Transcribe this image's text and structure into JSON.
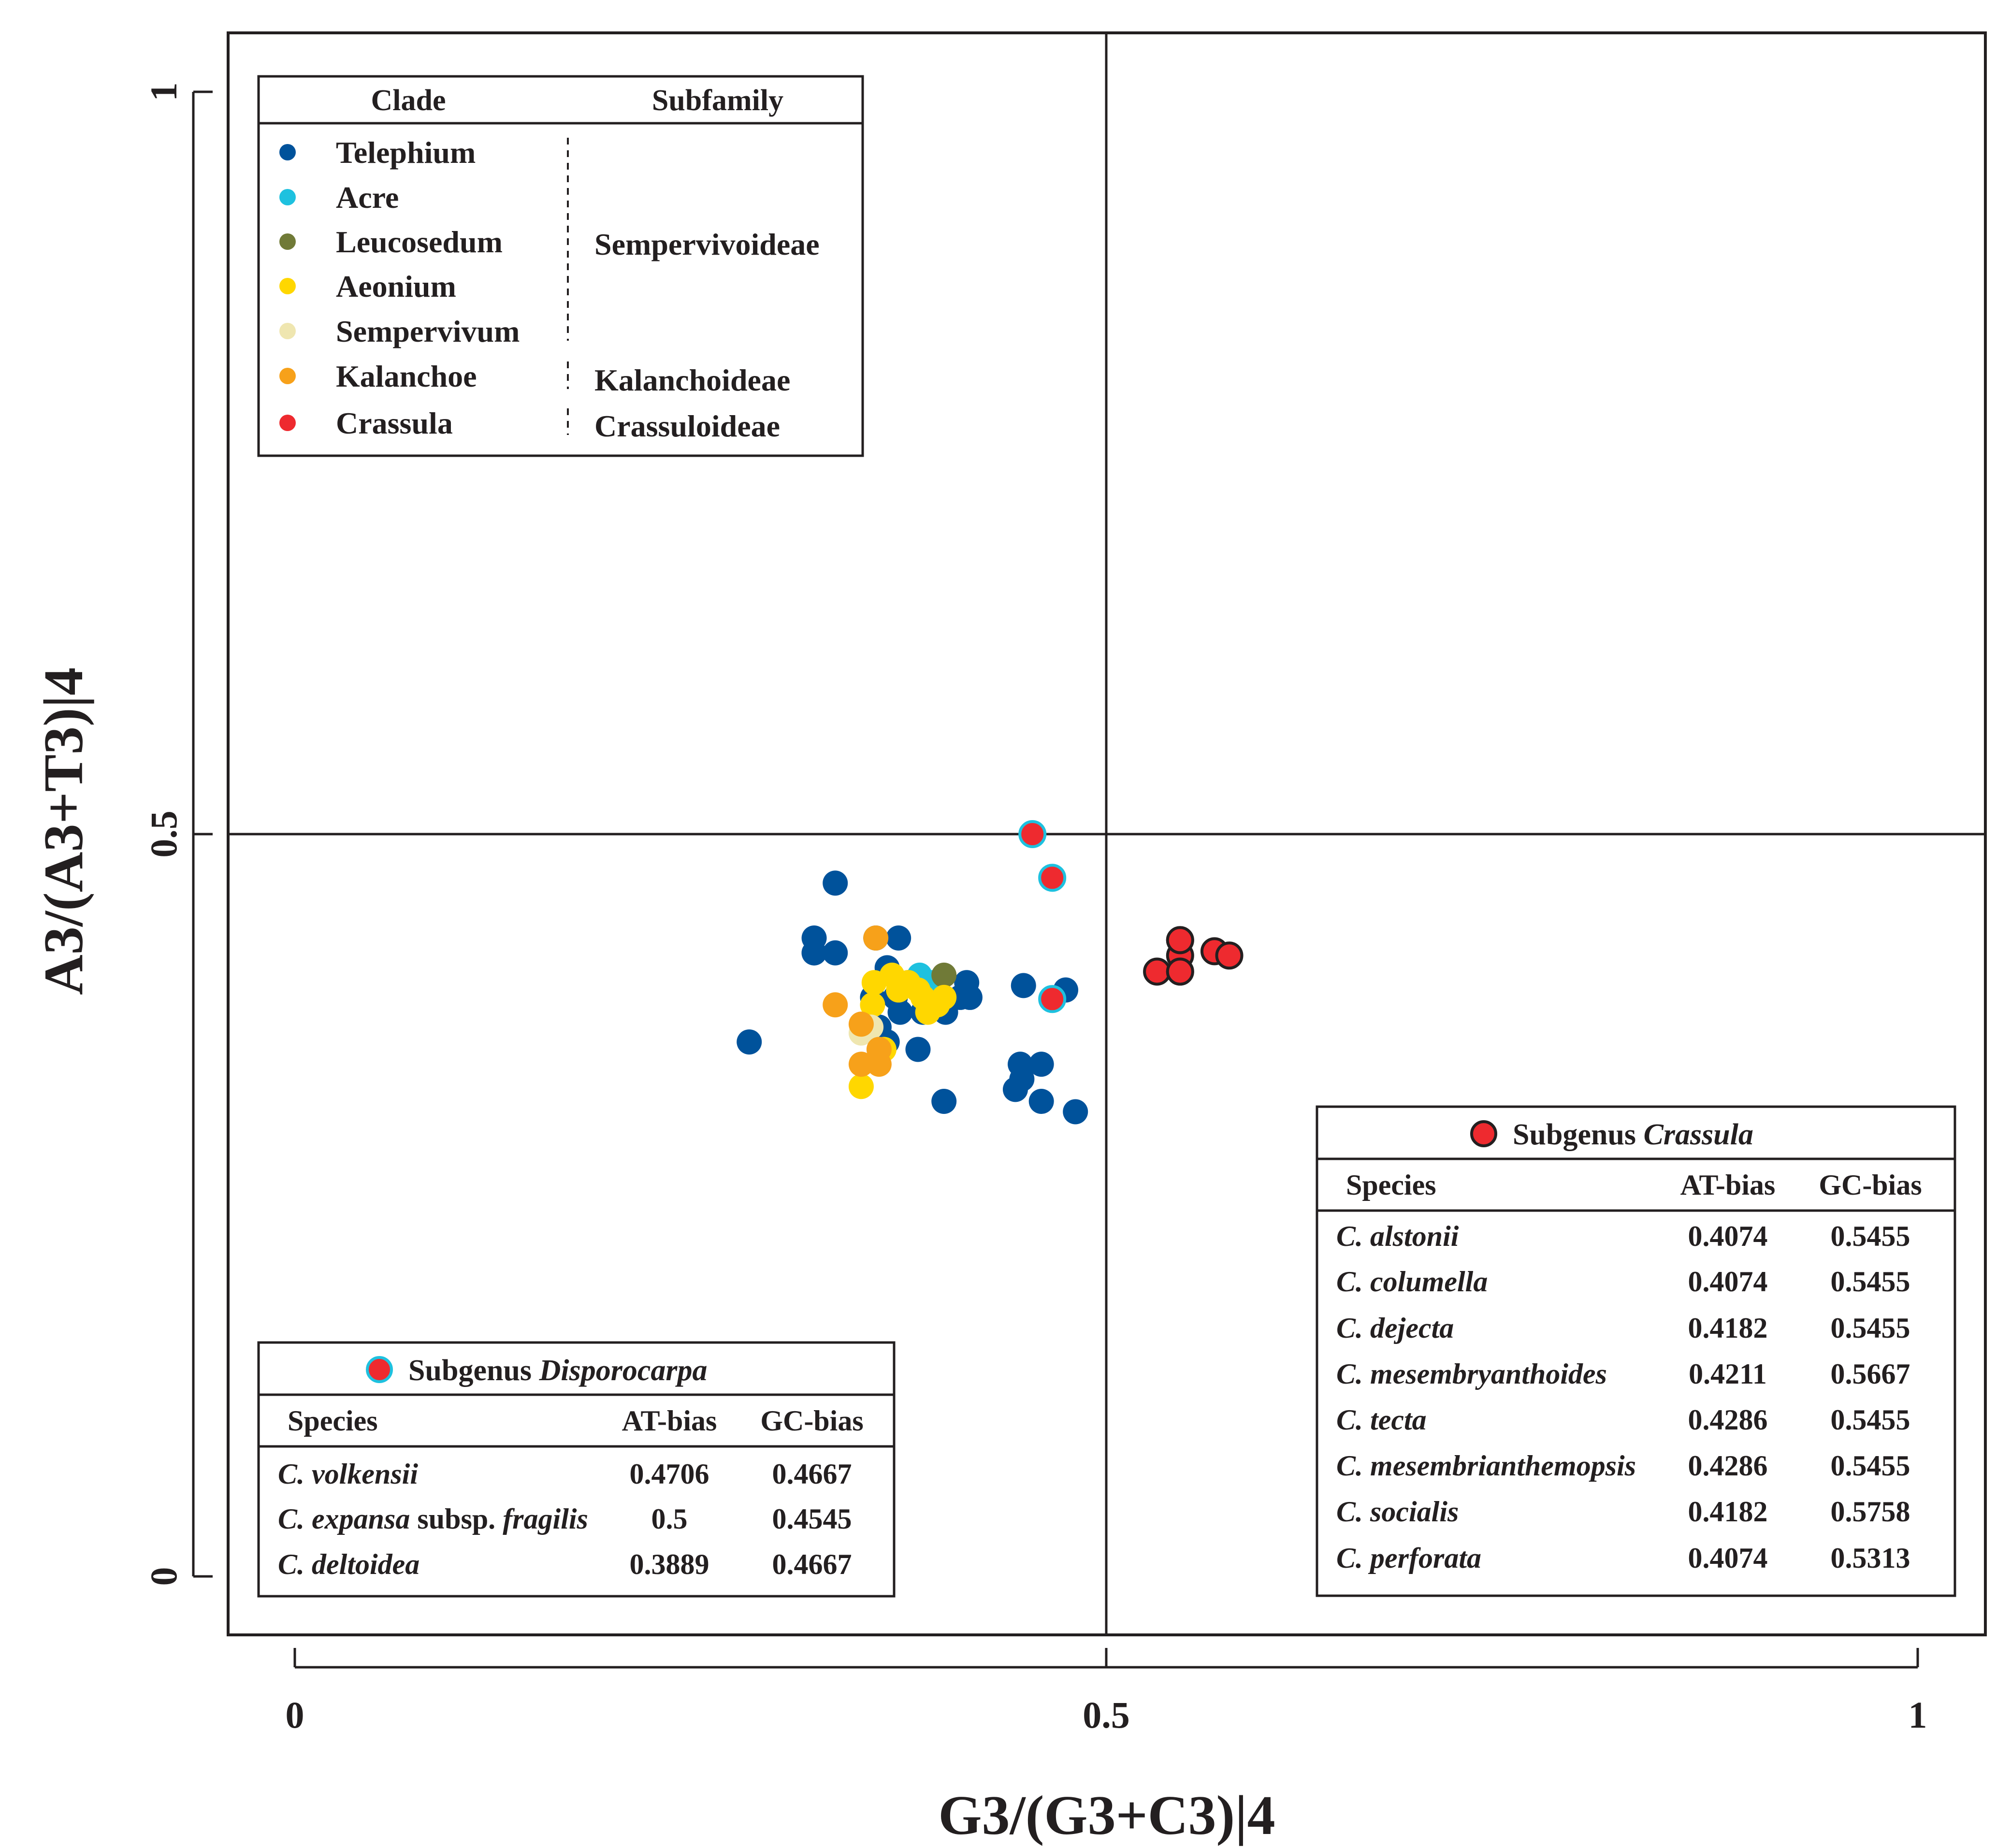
{
  "chart_data": {
    "type": "scatter",
    "xlabel": "G3/(G3+C3)|4",
    "ylabel": "A3/(A3+T3)|4",
    "xlim": [
      0,
      1
    ],
    "ylim": [
      0,
      1
    ],
    "xticks": [
      "0",
      "0.5",
      "1"
    ],
    "yticks": [
      "0",
      "0.5",
      "1"
    ],
    "reference_lines": {
      "x": 0.5,
      "y": 0.5
    },
    "legend": {
      "position": "top-left",
      "headers": {
        "clade": "Clade",
        "subfamily": "Subfamily"
      },
      "items": [
        {
          "label": "Telephium",
          "color": "#00529b"
        },
        {
          "label": "Acre",
          "color": "#1ec1df"
        },
        {
          "label": "Leucosedum",
          "color": "#707a37"
        },
        {
          "label": "Aeonium",
          "color": "#ffd700"
        },
        {
          "label": "Sempervivum",
          "color": "#efe6b0"
        },
        {
          "label": "Kalanchoe",
          "color": "#f7a11a"
        },
        {
          "label": "Crassula",
          "color": "#ee2a2f"
        }
      ],
      "subfamilies": [
        "Sempervivoideae",
        "Kalanchoideae",
        "Crassuloideae"
      ]
    },
    "series": [
      {
        "name": "Telephium",
        "color": "#00529b",
        "points": [
          [
            0.28,
            0.36
          ],
          [
            0.32,
            0.43
          ],
          [
            0.32,
            0.42
          ],
          [
            0.32,
            0.42
          ],
          [
            0.333,
            0.42
          ],
          [
            0.333,
            0.467
          ],
          [
            0.358,
            0.43
          ],
          [
            0.372,
            0.43
          ],
          [
            0.365,
            0.41
          ],
          [
            0.356,
            0.39
          ],
          [
            0.37,
            0.39
          ],
          [
            0.378,
            0.4
          ],
          [
            0.36,
            0.37
          ],
          [
            0.373,
            0.38
          ],
          [
            0.387,
            0.38
          ],
          [
            0.365,
            0.36
          ],
          [
            0.384,
            0.355
          ],
          [
            0.401,
            0.38
          ],
          [
            0.41,
            0.39
          ],
          [
            0.414,
            0.4
          ],
          [
            0.416,
            0.39
          ],
          [
            0.4,
            0.32
          ],
          [
            0.449,
            0.398
          ],
          [
            0.447,
            0.345
          ],
          [
            0.448,
            0.335
          ],
          [
            0.444,
            0.328
          ],
          [
            0.46,
            0.345
          ],
          [
            0.475,
            0.395
          ],
          [
            0.46,
            0.32
          ],
          [
            0.481,
            0.313
          ]
        ]
      },
      {
        "name": "Acre",
        "color": "#1ec1df",
        "points": [
          [
            0.385,
            0.405
          ],
          [
            0.392,
            0.4
          ]
        ]
      },
      {
        "name": "Leucosedum",
        "color": "#707a37",
        "points": [
          [
            0.4,
            0.405
          ]
        ]
      },
      {
        "name": "Aeonium",
        "color": "#ffd700",
        "points": [
          [
            0.357,
            0.4
          ],
          [
            0.368,
            0.405
          ],
          [
            0.378,
            0.4
          ],
          [
            0.384,
            0.395
          ],
          [
            0.387,
            0.39
          ],
          [
            0.39,
            0.38
          ],
          [
            0.396,
            0.385
          ],
          [
            0.4,
            0.39
          ],
          [
            0.356,
            0.385
          ],
          [
            0.372,
            0.395
          ],
          [
            0.349,
            0.33
          ],
          [
            0.363,
            0.355
          ]
        ]
      },
      {
        "name": "Sempervivum",
        "color": "#efe6b0",
        "points": [
          [
            0.349,
            0.366
          ],
          [
            0.355,
            0.37
          ]
        ]
      },
      {
        "name": "Kalanchoe",
        "color": "#f7a11a",
        "points": [
          [
            0.333,
            0.385
          ],
          [
            0.349,
            0.372
          ],
          [
            0.358,
            0.43
          ],
          [
            0.36,
            0.355
          ],
          [
            0.349,
            0.345
          ],
          [
            0.36,
            0.345
          ]
        ]
      },
      {
        "name": "Subgenus Crassula",
        "color": "#ee2a2f",
        "stroke": "#231f20",
        "points": [
          [
            0.5313,
            0.4074
          ],
          [
            0.5455,
            0.4074
          ],
          [
            0.5455,
            0.4182
          ],
          [
            0.5667,
            0.4211
          ],
          [
            0.5455,
            0.4286
          ],
          [
            0.5455,
            0.4286
          ],
          [
            0.5758,
            0.4182
          ],
          [
            0.5455,
            0.4074
          ]
        ]
      },
      {
        "name": "Subgenus Disporocarpa",
        "color": "#ee2a2f",
        "stroke": "#1ec1df",
        "points": [
          [
            0.4667,
            0.4706
          ],
          [
            0.4545,
            0.5
          ],
          [
            0.4667,
            0.3889
          ]
        ]
      }
    ],
    "tables": [
      {
        "title_prefix": "Subgenus ",
        "title_italic": "Crassula",
        "marker_fill": "#ee2a2f",
        "marker_stroke": "#231f20",
        "position": "bottom-right",
        "columns": [
          "Species",
          "AT-bias",
          "GC-bias"
        ],
        "rows": [
          [
            "C. alstonii",
            "0.4074",
            "0.5455"
          ],
          [
            "C. columella",
            "0.4074",
            "0.5455"
          ],
          [
            "C. dejecta",
            "0.4182",
            "0.5455"
          ],
          [
            "C. mesembryanthoides",
            "0.4211",
            "0.5667"
          ],
          [
            "C. tecta",
            "0.4286",
            "0.5455"
          ],
          [
            "C. mesembrianthemopsis",
            "0.4286",
            "0.5455"
          ],
          [
            "C. socialis",
            "0.4182",
            "0.5758"
          ],
          [
            "C. perforata",
            "0.4074",
            "0.5313"
          ]
        ]
      },
      {
        "title_prefix": "Subgenus ",
        "title_italic": "Disporocarpa",
        "marker_fill": "#ee2a2f",
        "marker_stroke": "#1ec1df",
        "position": "bottom-left",
        "columns": [
          "Species",
          "AT-bias",
          "GC-bias"
        ],
        "rows": [
          [
            {
              "italic": "C. expansa",
              "plain": " subsp. ",
              "italic2": "fragilis"
            },
            "0.5",
            "0.4545"
          ],
          [
            "C. volkensii",
            "0.4706",
            "0.4667"
          ],
          [
            "C. deltoidea",
            "0.3889",
            "0.4667"
          ]
        ]
      }
    ]
  }
}
